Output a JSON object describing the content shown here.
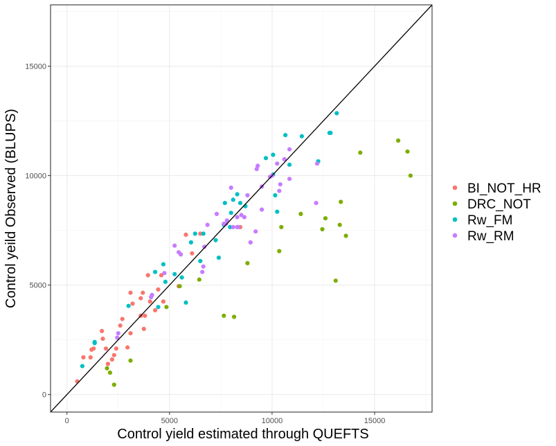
{
  "chart_data": {
    "type": "scatter",
    "title": "",
    "xlabel": "Control yield estimated through QUEFTS",
    "ylabel": "Control yeild Observed (BLUPS)",
    "xlim": [
      -800,
      17800
    ],
    "ylim": [
      -800,
      17800
    ],
    "x_ticks": [
      0,
      5000,
      10000,
      15000
    ],
    "x_tick_labels": [
      "0",
      "5000",
      "10000",
      "15000"
    ],
    "y_ticks": [
      0,
      5000,
      10000,
      15000
    ],
    "y_tick_labels": [
      "0",
      "5000",
      "10000",
      "15000"
    ],
    "grid": true,
    "legend_position": "right",
    "reference_line": {
      "type": "identity",
      "slope": 1,
      "intercept": 0,
      "color": "#000000"
    },
    "series": [
      {
        "name": "BI_NOT_HR",
        "color": "#F8766D",
        "points": [
          [
            500,
            600
          ],
          [
            800,
            1700
          ],
          [
            1150,
            1700
          ],
          [
            1200,
            2050
          ],
          [
            1300,
            2100
          ],
          [
            1700,
            2900
          ],
          [
            1750,
            2550
          ],
          [
            1900,
            2100
          ],
          [
            2000,
            1400
          ],
          [
            2200,
            1600
          ],
          [
            2300,
            1800
          ],
          [
            2400,
            2100
          ],
          [
            2600,
            3150
          ],
          [
            2700,
            3450
          ],
          [
            2950,
            2150
          ],
          [
            3100,
            2800
          ],
          [
            3100,
            4650
          ],
          [
            3200,
            4150
          ],
          [
            3600,
            3600
          ],
          [
            3600,
            4400
          ],
          [
            3700,
            4650
          ],
          [
            3750,
            3000
          ],
          [
            3800,
            3600
          ],
          [
            3950,
            5450
          ],
          [
            4050,
            4250
          ],
          [
            4300,
            3850
          ],
          [
            4450,
            4800
          ],
          [
            4600,
            5450
          ],
          [
            4700,
            4250
          ],
          [
            5450,
            4950
          ],
          [
            5800,
            7300
          ],
          [
            6100,
            6450
          ],
          [
            6500,
            7350
          ],
          [
            8450,
            7650
          ]
        ]
      },
      {
        "name": "DRC_NOT",
        "color": "#7CAE00",
        "points": [
          [
            1950,
            1200
          ],
          [
            2100,
            1000
          ],
          [
            2300,
            450
          ],
          [
            3100,
            1550
          ],
          [
            4850,
            4000
          ],
          [
            5500,
            4950
          ],
          [
            6450,
            5250
          ],
          [
            7650,
            3600
          ],
          [
            8150,
            3550
          ],
          [
            8800,
            6000
          ],
          [
            10350,
            6550
          ],
          [
            10450,
            7650
          ],
          [
            11400,
            8250
          ],
          [
            12450,
            7550
          ],
          [
            12600,
            8050
          ],
          [
            13100,
            5200
          ],
          [
            13300,
            7750
          ],
          [
            13350,
            8800
          ],
          [
            13600,
            7250
          ],
          [
            14300,
            11050
          ],
          [
            16150,
            11600
          ],
          [
            16600,
            11100
          ],
          [
            16750,
            10000
          ]
        ]
      },
      {
        "name": "Rw_FM",
        "color": "#00BFC4",
        "points": [
          [
            750,
            1300
          ],
          [
            1350,
            2350
          ],
          [
            1350,
            2400
          ],
          [
            3000,
            4050
          ],
          [
            4300,
            5600
          ],
          [
            4450,
            4000
          ],
          [
            4700,
            5950
          ],
          [
            4800,
            5150
          ],
          [
            5250,
            5500
          ],
          [
            5600,
            5350
          ],
          [
            5800,
            4200
          ],
          [
            6050,
            6950
          ],
          [
            6250,
            7350
          ],
          [
            6500,
            6100
          ],
          [
            6650,
            7350
          ],
          [
            7250,
            7050
          ],
          [
            7400,
            6250
          ],
          [
            7650,
            7750
          ],
          [
            7700,
            8750
          ],
          [
            7950,
            7650
          ],
          [
            8000,
            8300
          ],
          [
            8100,
            8900
          ],
          [
            8300,
            9150
          ],
          [
            8450,
            8750
          ],
          [
            8700,
            8600
          ],
          [
            9700,
            10800
          ],
          [
            10050,
            10050
          ],
          [
            10050,
            10950
          ],
          [
            10150,
            9100
          ],
          [
            10250,
            8350
          ],
          [
            10650,
            11850
          ],
          [
            10850,
            10500
          ],
          [
            11450,
            11800
          ],
          [
            12250,
            10650
          ],
          [
            12800,
            11950
          ],
          [
            12850,
            11950
          ],
          [
            13150,
            12850
          ]
        ]
      },
      {
        "name": "Rw_RM",
        "color": "#C77CFF",
        "points": [
          [
            2450,
            2600
          ],
          [
            2500,
            2800
          ],
          [
            4100,
            4450
          ],
          [
            4150,
            4550
          ],
          [
            4750,
            5550
          ],
          [
            5250,
            6800
          ],
          [
            5450,
            6500
          ],
          [
            5550,
            6400
          ],
          [
            6600,
            5600
          ],
          [
            6650,
            5850
          ],
          [
            6700,
            6750
          ],
          [
            6850,
            7750
          ],
          [
            7300,
            8250
          ],
          [
            7650,
            7800
          ],
          [
            7750,
            7800
          ],
          [
            7800,
            7950
          ],
          [
            8000,
            9450
          ],
          [
            8100,
            7650
          ],
          [
            8300,
            7650
          ],
          [
            8300,
            8100
          ],
          [
            8350,
            7650
          ],
          [
            8500,
            8200
          ],
          [
            8650,
            8100
          ],
          [
            8800,
            9100
          ],
          [
            8950,
            6950
          ],
          [
            9200,
            7450
          ],
          [
            9250,
            10300
          ],
          [
            9300,
            10450
          ],
          [
            9500,
            8450
          ],
          [
            9500,
            9500
          ],
          [
            9900,
            9950
          ],
          [
            10000,
            10000
          ],
          [
            10250,
            10550
          ],
          [
            10350,
            9300
          ],
          [
            10400,
            9600
          ],
          [
            10600,
            10750
          ],
          [
            10850,
            9850
          ],
          [
            10850,
            11200
          ],
          [
            12150,
            8750
          ],
          [
            12200,
            10550
          ]
        ]
      }
    ]
  }
}
